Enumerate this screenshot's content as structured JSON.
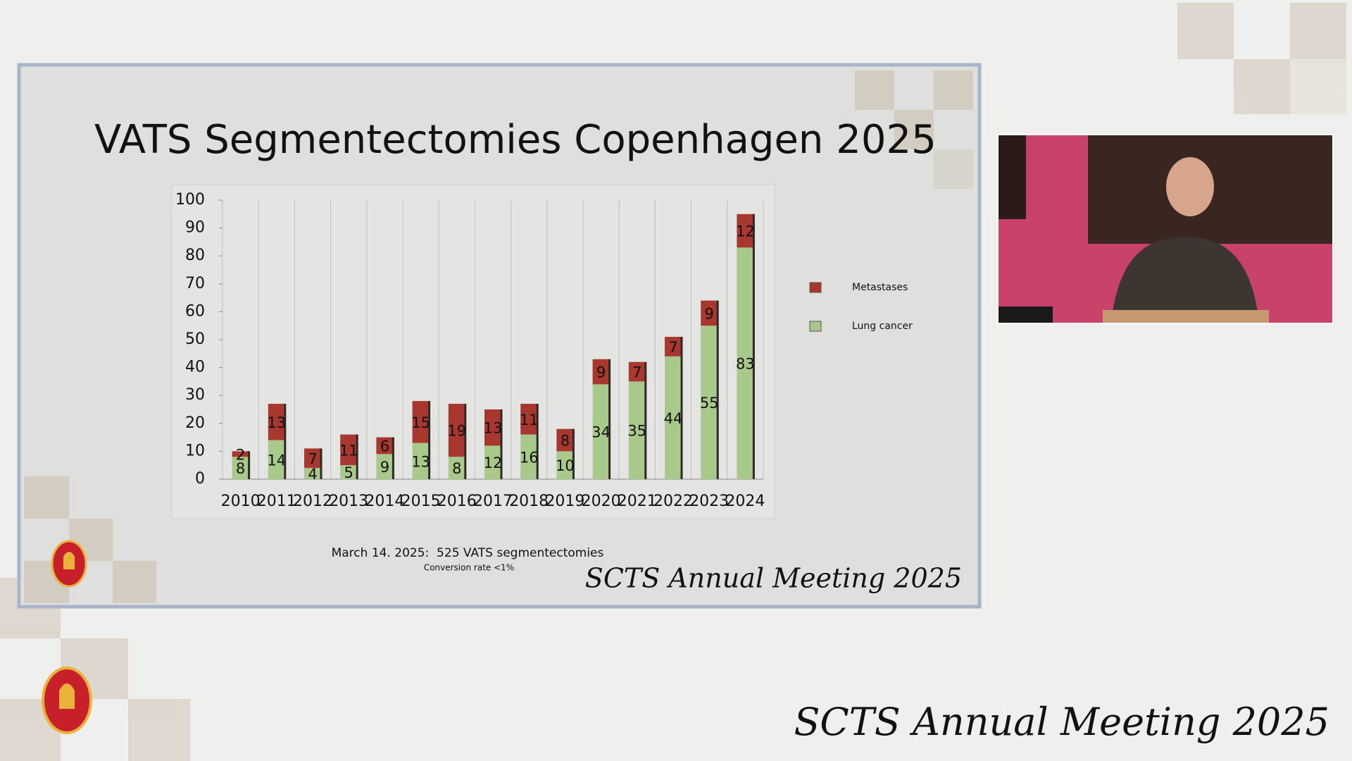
{
  "chart_data": {
    "type": "stacked_bar",
    "title": "VATS Segmentectomies Copenhagen 2025",
    "categories": [
      "2010",
      "2011",
      "2012",
      "2013",
      "2014",
      "2015",
      "2016",
      "2017",
      "2018",
      "2019",
      "2020",
      "2021",
      "2022",
      "2023",
      "2024"
    ],
    "series": [
      {
        "name": "Lung cancer",
        "color": "#a9c98a",
        "values": [
          8,
          14,
          4,
          5,
          9,
          13,
          8,
          12,
          16,
          10,
          34,
          35,
          44,
          55,
          83
        ]
      },
      {
        "name": "Metastases",
        "color": "#a8372f",
        "values": [
          2,
          13,
          7,
          11,
          6,
          15,
          19,
          13,
          11,
          8,
          9,
          7,
          7,
          9,
          12
        ]
      }
    ],
    "ylim": [
      0,
      100
    ],
    "yticks": [
      0,
      10,
      20,
      30,
      40,
      50,
      60,
      70,
      80,
      90,
      100
    ],
    "legend": "right"
  },
  "slide": {
    "note": "March 14. 2025:  525 VATS segmentectomies",
    "subnote": "Conversion rate <1%",
    "footer": "SCTS Annual Meeting 2025"
  },
  "footer": "SCTS Annual Meeting 2025"
}
